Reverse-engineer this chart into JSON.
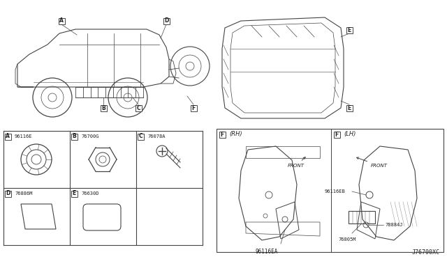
{
  "bg_color": "#ffffff",
  "fig_width": 6.4,
  "fig_height": 3.72,
  "dpi": 100,
  "line_color": "#444444",
  "text_color": "#222222",
  "footer_text": "J76700XC",
  "parts": {
    "A": "96116E",
    "B": "76700G",
    "C": "76078A",
    "D": "76886M",
    "E": "76630D"
  },
  "F_RH_part": "96116EA",
  "F_LH_parts": [
    "96116EB",
    "76805M",
    "78884J"
  ]
}
